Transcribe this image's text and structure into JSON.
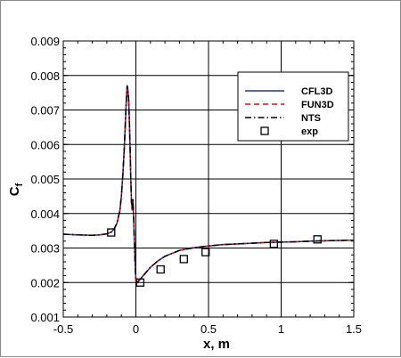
{
  "chart_data": {
    "type": "line",
    "title": "",
    "xlabel": "x, m",
    "ylabel_main": "C",
    "ylabel_sub": "f",
    "xlim": [
      -0.5,
      1.5
    ],
    "ylim": [
      0.001,
      0.009
    ],
    "grid": true,
    "legend_position": "top-right",
    "x_ticks": [
      -0.5,
      0,
      0.5,
      1,
      1.5
    ],
    "x_tick_labels": [
      "-0.5",
      "0",
      "0.5",
      "1",
      "1.5"
    ],
    "y_ticks": [
      0.001,
      0.002,
      0.003,
      0.004,
      0.005,
      0.006,
      0.007,
      0.008,
      0.009
    ],
    "y_tick_labels": [
      "0.001",
      "0.002",
      "0.003",
      "0.004",
      "0.005",
      "0.006",
      "0.007",
      "0.008",
      "0.009"
    ],
    "series": [
      {
        "name": "CFL3D",
        "style": "solid",
        "color": "#1f2fbf",
        "x": [
          -0.5,
          -0.4,
          -0.3,
          -0.25,
          -0.2,
          -0.17,
          -0.15,
          -0.13,
          -0.11,
          -0.1,
          -0.09,
          -0.08,
          -0.075,
          -0.07,
          -0.065,
          -0.06,
          -0.055,
          -0.05,
          -0.045,
          -0.04,
          -0.035,
          -0.03,
          -0.025,
          -0.02,
          -0.015,
          -0.01,
          -0.005,
          0.0,
          0.005,
          0.02,
          0.05,
          0.1,
          0.15,
          0.2,
          0.3,
          0.4,
          0.5,
          0.6,
          0.7,
          0.8,
          0.9,
          1.0,
          1.1,
          1.2,
          1.3,
          1.4,
          1.5
        ],
        "y": [
          0.0034,
          0.00338,
          0.00337,
          0.00338,
          0.00341,
          0.00346,
          0.00355,
          0.00372,
          0.0041,
          0.0045,
          0.0051,
          0.0059,
          0.0064,
          0.0069,
          0.0074,
          0.0077,
          0.0076,
          0.0073,
          0.0067,
          0.0059,
          0.005,
          0.0043,
          0.0041,
          0.0044,
          0.0038,
          0.0031,
          0.0025,
          0.00205,
          0.00198,
          0.00205,
          0.0022,
          0.00244,
          0.00262,
          0.00276,
          0.00293,
          0.00301,
          0.00306,
          0.0031,
          0.00312,
          0.00314,
          0.00316,
          0.00317,
          0.00318,
          0.0032,
          0.00321,
          0.00322,
          0.00323
        ]
      },
      {
        "name": "FUN3D",
        "style": "dashed",
        "color": "#d01010",
        "x": [
          -0.5,
          -0.4,
          -0.3,
          -0.25,
          -0.2,
          -0.17,
          -0.15,
          -0.13,
          -0.11,
          -0.1,
          -0.09,
          -0.08,
          -0.075,
          -0.07,
          -0.065,
          -0.06,
          -0.055,
          -0.05,
          -0.045,
          -0.04,
          -0.035,
          -0.03,
          -0.025,
          -0.02,
          -0.015,
          -0.01,
          -0.005,
          0.0,
          0.005,
          0.02,
          0.05,
          0.1,
          0.15,
          0.2,
          0.3,
          0.4,
          0.5,
          0.6,
          0.7,
          0.8,
          0.9,
          1.0,
          1.1,
          1.2,
          1.3,
          1.4,
          1.5
        ],
        "y": [
          0.0034,
          0.00338,
          0.00337,
          0.00338,
          0.00341,
          0.00346,
          0.00355,
          0.00372,
          0.0041,
          0.0045,
          0.0051,
          0.0059,
          0.0064,
          0.0069,
          0.0073,
          0.0076,
          0.0075,
          0.0072,
          0.0066,
          0.0058,
          0.005,
          0.0043,
          0.0041,
          0.0044,
          0.0038,
          0.0031,
          0.0025,
          0.00205,
          0.00198,
          0.00205,
          0.0022,
          0.00244,
          0.00262,
          0.00276,
          0.00293,
          0.00301,
          0.00306,
          0.0031,
          0.00312,
          0.00314,
          0.00316,
          0.00317,
          0.00318,
          0.0032,
          0.00321,
          0.00322,
          0.00323
        ]
      },
      {
        "name": "NTS",
        "style": "dashdot",
        "color": "#000000",
        "x": [
          -0.5,
          -0.4,
          -0.3,
          -0.25,
          -0.2,
          -0.17,
          -0.15,
          -0.13,
          -0.11,
          -0.1,
          -0.09,
          -0.08,
          -0.075,
          -0.07,
          -0.065,
          -0.06,
          -0.055,
          -0.05,
          -0.045,
          -0.04,
          -0.035,
          -0.03,
          -0.025,
          -0.02,
          -0.015,
          -0.01,
          -0.005,
          0.0,
          0.005,
          0.02,
          0.05,
          0.1,
          0.15,
          0.2,
          0.3,
          0.4,
          0.5,
          0.6,
          0.7,
          0.8,
          0.9,
          1.0,
          1.1,
          1.2,
          1.3,
          1.4,
          1.5
        ],
        "y": [
          0.0034,
          0.00338,
          0.00337,
          0.00338,
          0.00341,
          0.00346,
          0.00355,
          0.00372,
          0.0041,
          0.0045,
          0.0051,
          0.0059,
          0.0064,
          0.0069,
          0.0074,
          0.0077,
          0.0076,
          0.0073,
          0.0067,
          0.0059,
          0.005,
          0.0043,
          0.0041,
          0.0044,
          0.0038,
          0.0031,
          0.0025,
          0.00205,
          0.00198,
          0.00205,
          0.0022,
          0.00244,
          0.00262,
          0.00276,
          0.00293,
          0.00301,
          0.00306,
          0.0031,
          0.00312,
          0.00314,
          0.00316,
          0.00317,
          0.00318,
          0.0032,
          0.00321,
          0.00322,
          0.00323
        ]
      },
      {
        "name": "exp",
        "style": "markers",
        "marker": "square",
        "color": "#000000",
        "x": [
          -0.17,
          0.03,
          0.17,
          0.33,
          0.48,
          0.95,
          1.25
        ],
        "y": [
          0.00345,
          0.002,
          0.00238,
          0.00268,
          0.00288,
          0.00312,
          0.00325
        ]
      }
    ]
  }
}
